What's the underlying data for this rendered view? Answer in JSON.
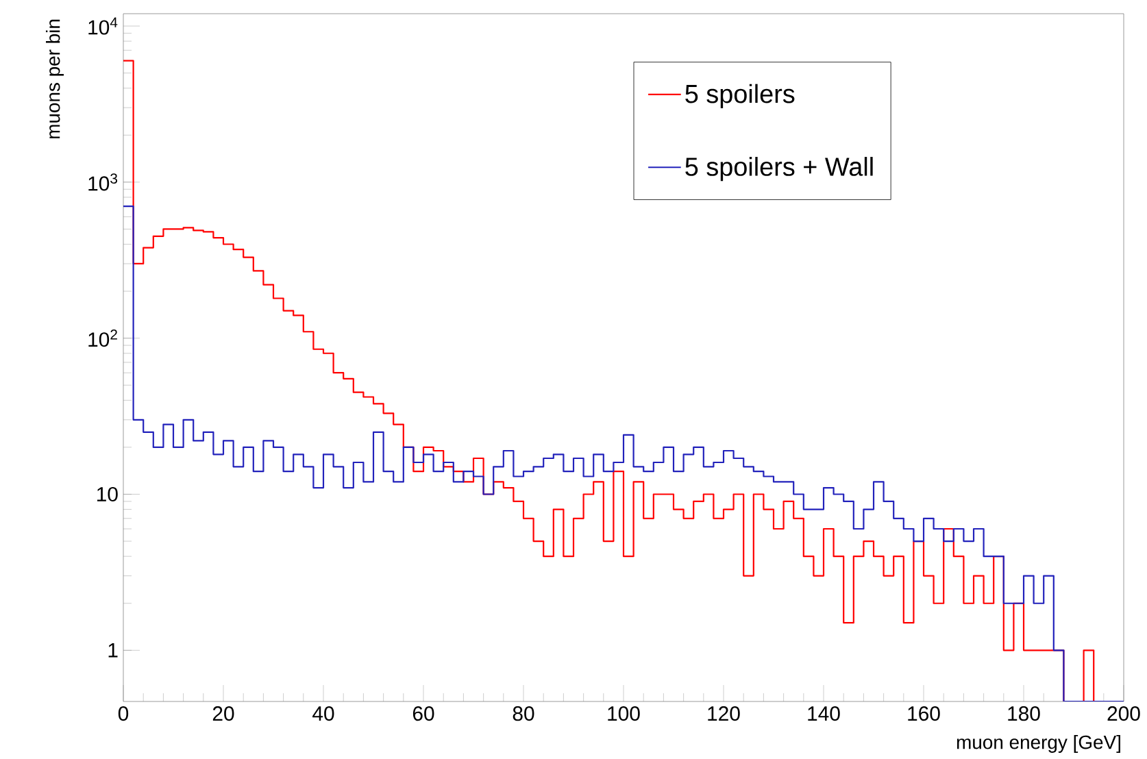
{
  "chart_data": {
    "type": "histogram",
    "xlabel": "muon energy [GeV]",
    "ylabel": "muons per bin",
    "log": "y",
    "legend": "top right",
    "grid": false,
    "bins": [
      0,
      2,
      4,
      6,
      8,
      10,
      12,
      14,
      16,
      18,
      20,
      22,
      24,
      26,
      28,
      30,
      32,
      34,
      36,
      38,
      40,
      42,
      44,
      46,
      48,
      50,
      52,
      54,
      56,
      58,
      60,
      62,
      64,
      66,
      68,
      70,
      72,
      74,
      76,
      78,
      80,
      82,
      84,
      86,
      88,
      90,
      92,
      94,
      96,
      98,
      100,
      102,
      104,
      106,
      108,
      110,
      112,
      114,
      116,
      118,
      120,
      122,
      124,
      126,
      128,
      130,
      132,
      134,
      136,
      138,
      140,
      142,
      144,
      146,
      148,
      150,
      152,
      154,
      156,
      158,
      160,
      162,
      164,
      166,
      168,
      170,
      172,
      174,
      176,
      178,
      180,
      182,
      184,
      186,
      188,
      190,
      192,
      194,
      196,
      198,
      200
    ],
    "series": [
      {
        "name": "5 spoilers",
        "color": "#ff0000",
        "values": [
          6000,
          300,
          380,
          450,
          500,
          500,
          510,
          490,
          480,
          440,
          400,
          370,
          330,
          270,
          220,
          180,
          150,
          140,
          110,
          85,
          80,
          60,
          55,
          45,
          42,
          38,
          33,
          28,
          20,
          14,
          20,
          19,
          15,
          14,
          12,
          17,
          10,
          12,
          11,
          9,
          7,
          5,
          4,
          8,
          4,
          7,
          10,
          12,
          5,
          14,
          4,
          12,
          7,
          10,
          10,
          8,
          7,
          9,
          10,
          7,
          8,
          10,
          3,
          10,
          8,
          6,
          9,
          7,
          4,
          3,
          6,
          4,
          1.5,
          4,
          5,
          4,
          3,
          4,
          1.5,
          5,
          3,
          2,
          6,
          4,
          2,
          3,
          2,
          4,
          1,
          2,
          1,
          1,
          1,
          1,
          null,
          null,
          1,
          null,
          null,
          null
        ]
      },
      {
        "name": "5 spoilers + Wall",
        "color": "#2222bb",
        "values": [
          700,
          30,
          25,
          20,
          28,
          20,
          30,
          22,
          25,
          18,
          22,
          15,
          20,
          14,
          22,
          20,
          14,
          18,
          15,
          11,
          18,
          15,
          11,
          16,
          12,
          25,
          14,
          12,
          20,
          16,
          18,
          14,
          16,
          12,
          14,
          13,
          10,
          15,
          19,
          13,
          14,
          15,
          17,
          18,
          14,
          17,
          13,
          18,
          14,
          16,
          24,
          15,
          14,
          16,
          20,
          14,
          18,
          20,
          15,
          16,
          19,
          17,
          15,
          14,
          13,
          12,
          12,
          10,
          8,
          8,
          11,
          10,
          9,
          6,
          8,
          12,
          9,
          7,
          6,
          5,
          7,
          6,
          5,
          6,
          5,
          6,
          4,
          4,
          2,
          2,
          3,
          2,
          3,
          1,
          null,
          null,
          null,
          null,
          null,
          null
        ]
      }
    ],
    "xlim": [
      0,
      200
    ],
    "xticks": [
      0,
      20,
      40,
      60,
      80,
      100,
      120,
      140,
      160,
      180,
      200
    ],
    "ylim": [
      0.47,
      12000
    ],
    "yticks": [
      {
        "value": 1,
        "label": "1"
      },
      {
        "value": 10,
        "label": "10"
      },
      {
        "value": 100,
        "label": "10$^{2}$"
      },
      {
        "value": 1000,
        "label": "10$^{3}$"
      },
      {
        "value": 10000,
        "label": "10$^{4}$"
      }
    ]
  }
}
